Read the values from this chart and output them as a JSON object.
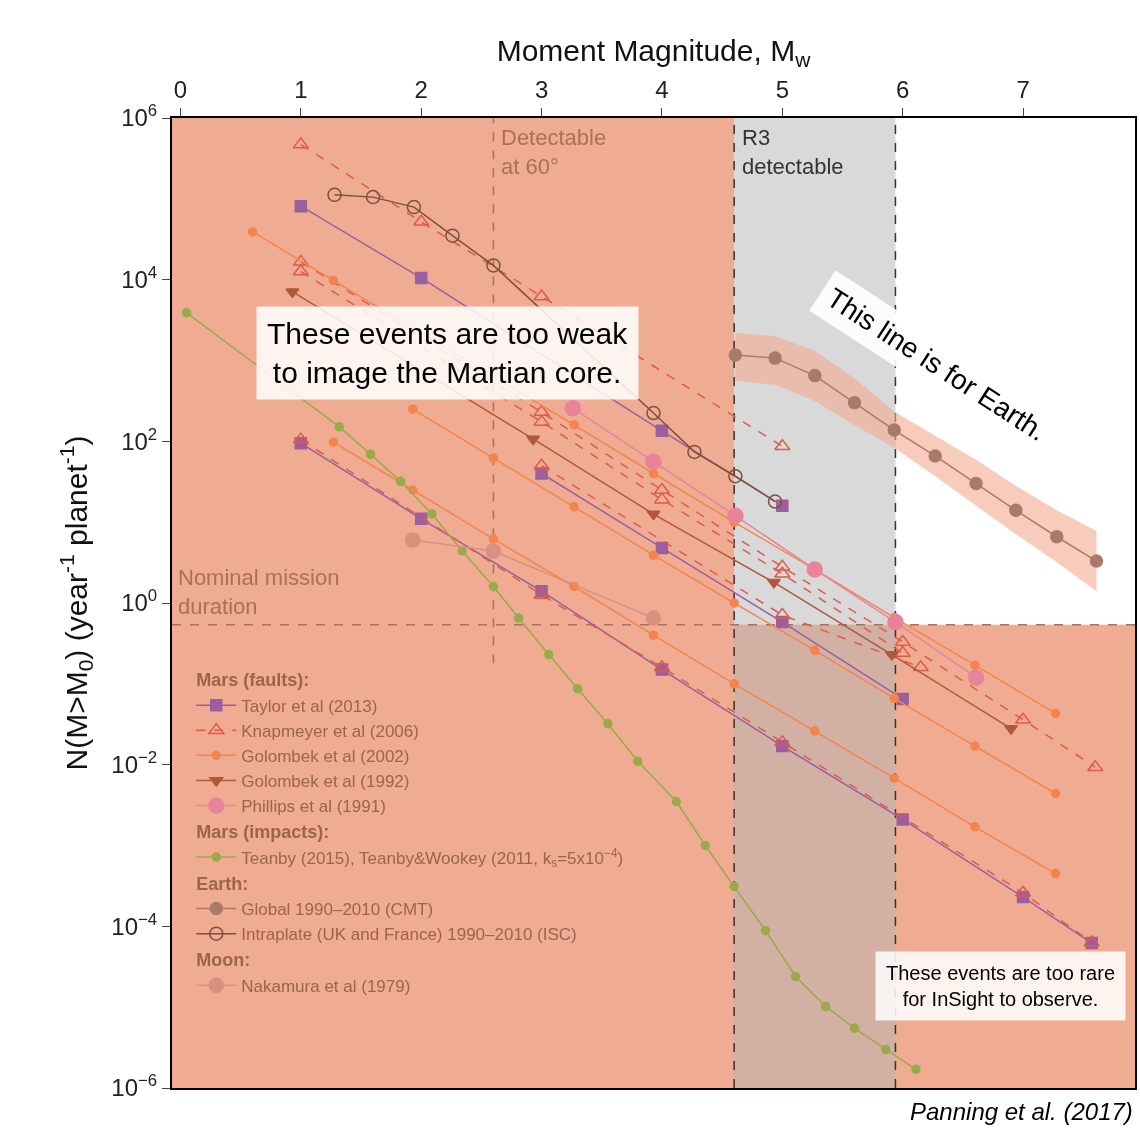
{
  "chart_data": {
    "type": "line",
    "xlabel": "Moment Magnitude, M$_{w}$",
    "ylabel": "N(M>M$_{0}$) (year$^{-1}$ planet$^{-1}$)",
    "log": "y",
    "grid": false,
    "legend": "bottom left",
    "xlim": [
      -0.07,
      7.93
    ],
    "xticks": [
      0,
      1,
      2,
      3,
      4,
      5,
      6,
      7
    ],
    "ylim": [
      1e-06,
      1000000
    ],
    "yticks": [
      {
        "value": 1e-06,
        "label": "10$^{−6}$"
      },
      {
        "value": 0.0001,
        "label": "10$^{−4}$"
      },
      {
        "value": 0.01,
        "label": "10$^{−2}$"
      },
      {
        "value": 1,
        "label": "10$^{0}$"
      },
      {
        "value": 100,
        "label": "10$^{2}$"
      },
      {
        "value": 10000,
        "label": "10$^{4}$"
      },
      {
        "value": 1000000,
        "label": "10$^{6}$"
      }
    ],
    "bands": [
      {
        "axis": "x",
        "from": -0.07,
        "to": 4.6,
        "color": "#f0ac92",
        "label": "These events are too weak to image the Martian core."
      },
      {
        "axis": "y",
        "from": 1e-06,
        "to": 0.54,
        "color": "#f0ac92",
        "label": "These events are too rare for InSight to observe."
      },
      {
        "axis": "x",
        "from": 4.6,
        "to": 5.94,
        "color": "#b3b3b3",
        "label": "R3 detectable"
      }
    ],
    "ref_lines": [
      {
        "axis": "x",
        "value": 2.6,
        "label": "Detectable at 60°",
        "color": "#a8715a",
        "line_style": "dashed"
      },
      {
        "axis": "y",
        "value": 0.54,
        "label": "Nominal mission duration",
        "color": "#a8715a",
        "line_style": "dashed"
      },
      {
        "axis": "x",
        "value": 4.6,
        "color": "#333333",
        "line_style": "dashed"
      },
      {
        "axis": "x",
        "value": 5.94,
        "color": "#333333",
        "line_style": "dashed"
      }
    ],
    "annotations": [
      "This line is for Earth.",
      "Panning et al. (2017)",
      "Mars (faults):",
      "Mars (impacts):",
      "Earth:",
      "Moon:"
    ],
    "series": [
      {
        "name": "Taylor et al (2013)",
        "color": "#9b5fa0",
        "marker": "square",
        "line_style": "solid",
        "x": [
          1,
          2,
          3,
          4,
          5
        ],
        "values": [
          81000,
          10500,
          null,
          135,
          16
        ]
      },
      {
        "color": "#9b5fa0",
        "marker": "square",
        "line_style": "solid",
        "x": [
          3,
          4,
          5,
          6
        ],
        "values": [
          40,
          4.8,
          0.58,
          0.065
        ]
      },
      {
        "color": "#9b5fa0",
        "marker": "square",
        "line_style": "solid",
        "x": [
          1,
          2,
          3,
          4,
          5,
          6,
          7,
          7.57
        ],
        "values": [
          95,
          11,
          1.4,
          0.15,
          0.017,
          0.0021,
          0.00023,
          6.2e-05
        ]
      },
      {
        "name": "Knapmeyer et al (2006)",
        "color": "#e05a4a",
        "marker": "triangle-open",
        "line_style": "dashed",
        "x": [
          1,
          2,
          3,
          4,
          5
        ],
        "values": [
          470000,
          52000,
          6200,
          null,
          87
        ]
      },
      {
        "color": "#e05a4a",
        "marker": "triangle-open",
        "line_style": "dashed",
        "x": [
          1,
          3,
          4,
          5,
          6,
          7,
          7.6
        ],
        "values": [
          16600,
          230,
          25,
          2.8,
          0.33,
          0.036,
          0.0093
        ]
      },
      {
        "color": "#e05a4a",
        "marker": "triangle-open",
        "line_style": "dashed",
        "x": [
          1,
          3,
          4,
          5,
          6
        ],
        "values": [
          12600,
          174,
          19,
          2.3,
          0.24
        ]
      },
      {
        "color": "#e05a4a",
        "marker": "triangle-open",
        "line_style": "dashed",
        "x": [
          3,
          5,
          6.15
        ],
        "values": [
          50,
          0.71,
          0.16
        ]
      },
      {
        "color": "#e05a4a",
        "marker": "triangle-open",
        "line_style": "dashed",
        "x": [
          1,
          3,
          4,
          5,
          7,
          7.57
        ],
        "values": [
          105,
          1.26,
          0.16,
          0.019,
          0.00026,
          6.3e-05
        ]
      },
      {
        "name": "Golombek et al (2002)",
        "color": "#f5844c",
        "marker": "circle",
        "line_style": "solid",
        "x": [
          0.6,
          1.27,
          1.93,
          2.6,
          3.27,
          3.93,
          4.6,
          5.27,
          5.93,
          6.6,
          7.27
        ],
        "values": [
          39000,
          9800,
          null,
          null,
          160,
          40,
          10,
          2.6,
          0.66,
          0.17,
          0.043
        ]
      },
      {
        "color": "#f5844c",
        "marker": "circle",
        "line_style": "solid",
        "x": [
          1.93,
          2.6,
          3.27,
          3.93,
          4.6,
          5.27,
          5.93,
          6.6,
          7.27
        ],
        "values": [
          250,
          62,
          15.5,
          3.9,
          1.0,
          0.26,
          0.066,
          0.017,
          0.0044
        ]
      },
      {
        "color": "#f5844c",
        "marker": "circle",
        "line_style": "solid",
        "x": [
          1.27,
          1.93,
          2.6,
          3.27,
          3.93,
          4.6,
          5.27,
          5.93,
          6.6,
          7.27
        ],
        "values": [
          98,
          25,
          6.2,
          1.6,
          0.4,
          0.1,
          0.026,
          0.0068,
          0.0017,
          0.00045
        ]
      },
      {
        "name": "Golombek et al (1992)",
        "color": "#b0583a",
        "marker": "triangle-down",
        "line_style": "solid",
        "x": [
          0.93,
          2.93,
          3.93,
          4.93,
          5.91,
          6.9
        ],
        "values": [
          7100,
          107,
          12.6,
          1.8,
          0.23,
          0.028
        ]
      },
      {
        "name": "Phillips et al (1991)",
        "color": "#e8849a",
        "marker": "circle",
        "line_style": "solid",
        "x": [
          3.26,
          3.93,
          4.61,
          5.27,
          5.94,
          6.61
        ],
        "values": [
          257,
          56,
          12,
          2.6,
          0.58,
          0.12
        ]
      },
      {
        "name": "Teanby (2015), Teanby&Wookey (2011, k$_{s}$=5x10$^{−4}$)",
        "color": "#9aaa4a",
        "marker": "circle",
        "line_style": "solid",
        "x": [
          0.05,
          0.57,
          1.07,
          1.32,
          1.58,
          1.83,
          2.09,
          2.34,
          2.6,
          2.81,
          3.06,
          3.3,
          3.55,
          3.8,
          4.12,
          4.36,
          4.6,
          4.86,
          5.11,
          5.36,
          5.6,
          5.86,
          6.11
        ],
        "values": [
          3900,
          null,
          null,
          151,
          69,
          32,
          12.6,
          4.4,
          1.6,
          0.65,
          0.23,
          0.087,
          0.032,
          0.011,
          0.0035,
          0.001,
          0.00031,
          8.9e-05,
          2.4e-05,
          1.02e-05,
          5.5e-06,
          3e-06,
          1.7e-06
        ]
      },
      {
        "name": "Global 1990–2010 (CMT)",
        "color": "#a87a68",
        "marker": "circle",
        "line_style": "solid",
        "x": [
          4.61,
          4.94,
          5.27,
          5.6,
          5.93,
          6.27,
          6.61,
          6.94,
          7.28,
          7.61
        ],
        "values": [
          1170,
          1070,
          650,
          300,
          138,
          66,
          30,
          14,
          6.6,
          3.3
        ],
        "lower": [
          560,
          500,
          316,
          158,
          83,
          37,
          16,
          7.1,
          3.2,
          1.4
        ],
        "upper": [
          2200,
          2000,
          1320,
          600,
          234,
          117,
          59,
          28,
          14,
          7.8
        ]
      },
      {
        "name": "Intraplate (UK and France) 1990–2010 (ISC)",
        "color": "#7a5040",
        "marker": "circle-open",
        "line_style": "solid",
        "x": [
          1.28,
          1.6,
          1.94,
          2.26,
          2.6,
          2.93,
          3.26,
          3.93,
          4.27,
          4.61,
          4.94
        ],
        "values": [
          112000,
          105000,
          79000,
          35000,
          15000,
          null,
          null,
          224,
          74,
          37,
          18
        ]
      },
      {
        "name": "Nakamura et al (1979)",
        "color": "#d89080",
        "marker": "circle",
        "line_style": "solid",
        "x": [
          1.93,
          2.6,
          3.93
        ],
        "values": [
          6.0,
          4.4,
          0.65
        ]
      }
    ]
  }
}
